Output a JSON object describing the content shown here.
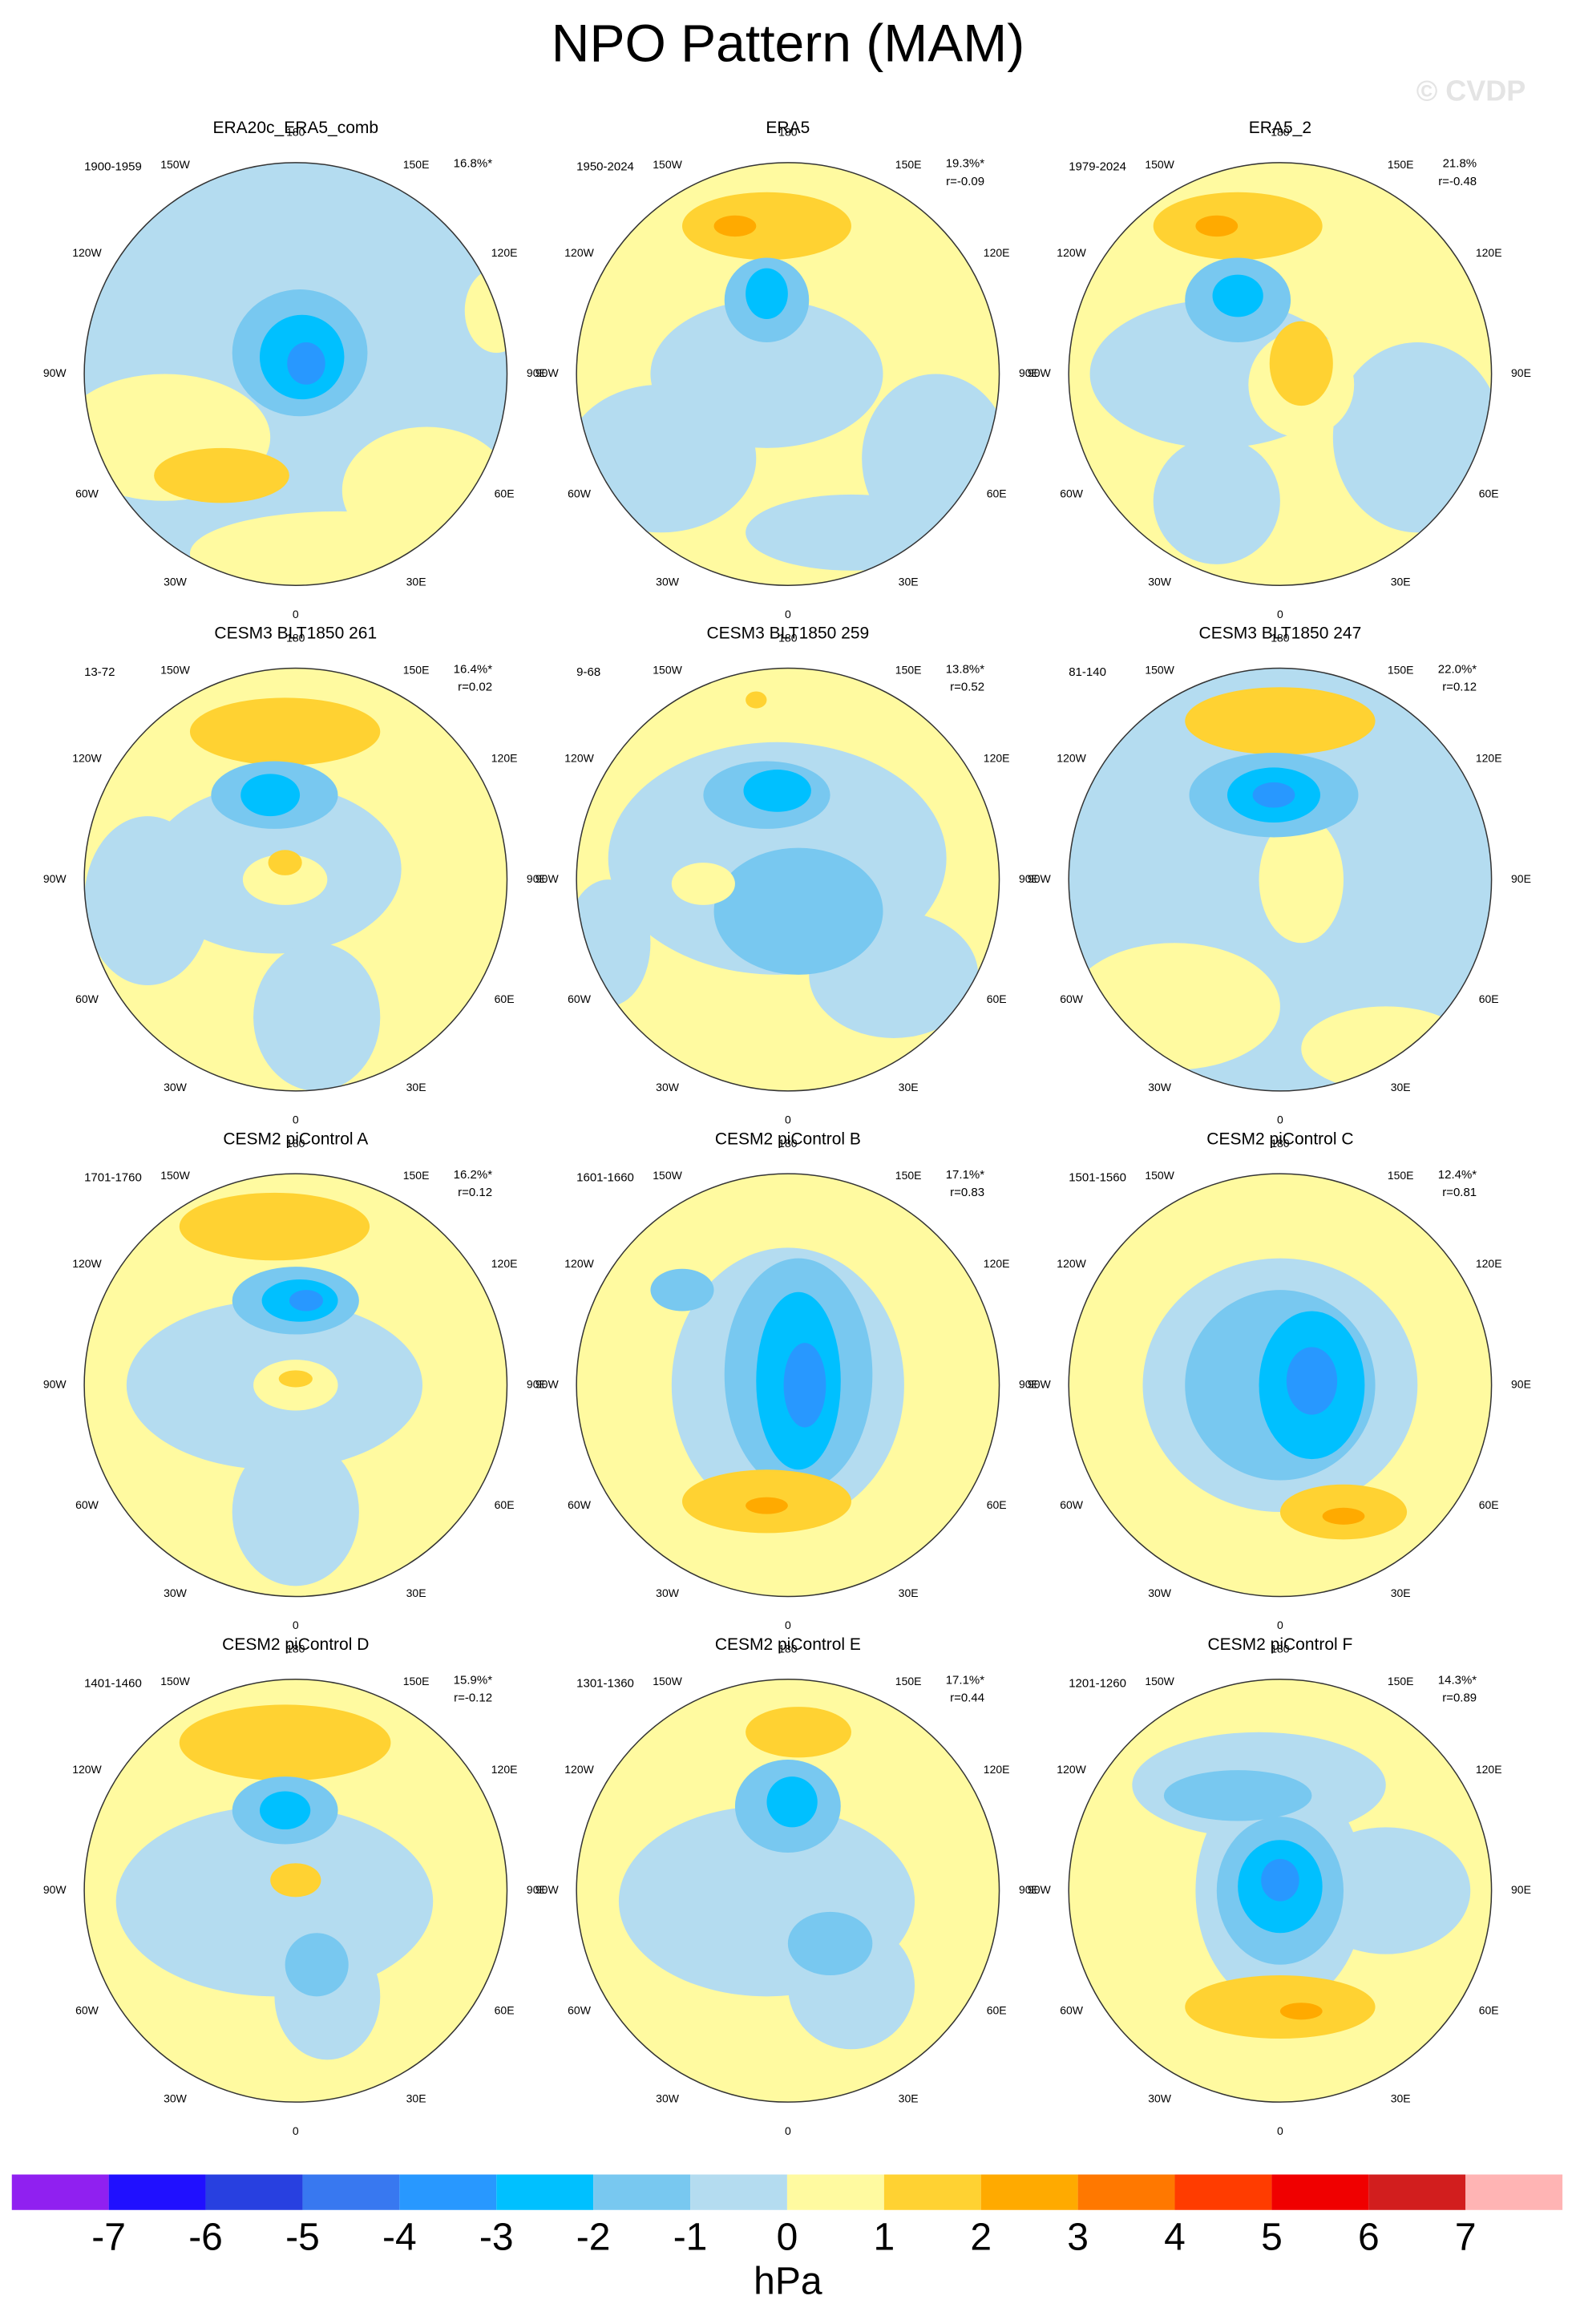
{
  "title": "NPO Pattern (MAM)",
  "watermark": "© CVDP",
  "lon_labels": [
    "180",
    "150E",
    "120E",
    "90E",
    "60E",
    "30E",
    "0",
    "30W",
    "60W",
    "90W",
    "120W",
    "150W"
  ],
  "panels": [
    {
      "title": "ERA20c_ERA5_comb",
      "period": "1900-1959",
      "pct": "16.8%*"
    },
    {
      "title": "ERA5",
      "period": "1950-2024",
      "pct": "19.3%*",
      "r": "r=-0.09"
    },
    {
      "title": "ERA5_2",
      "period": "1979-2024",
      "pct": "21.8%",
      "r": "r=-0.48"
    },
    {
      "title": "CESM3 BLT1850 261",
      "period": "13-72",
      "pct": "16.4%*",
      "r": "r=0.02"
    },
    {
      "title": "CESM3 BLT1850 259",
      "period": "9-68",
      "pct": "13.8%*",
      "r": "r=0.52"
    },
    {
      "title": "CESM3 BLT1850 247",
      "period": "81-140",
      "pct": "22.0%*",
      "r": "r=0.12"
    },
    {
      "title": "CESM2 piControl A",
      "period": "1701-1760",
      "pct": "16.2%*",
      "r": "r=0.12"
    },
    {
      "title": "CESM2 piControl B",
      "period": "1601-1660",
      "pct": "17.1%*",
      "r": "r=0.83"
    },
    {
      "title": "CESM2 piControl C",
      "period": "1501-1560",
      "pct": "12.4%*",
      "r": "r=0.81"
    },
    {
      "title": "CESM2 piControl D",
      "period": "1401-1460",
      "pct": "15.9%*",
      "r": "r=-0.12"
    },
    {
      "title": "CESM2 piControl E",
      "period": "1301-1360",
      "pct": "17.1%*",
      "r": "r=0.44"
    },
    {
      "title": "CESM2 piControl F",
      "period": "1201-1260",
      "pct": "14.3%*",
      "r": "r=0.89"
    }
  ],
  "colorbar": {
    "levels": [
      -7,
      -6,
      -5,
      -4,
      -3,
      -2,
      -1,
      0,
      1,
      2,
      3,
      4,
      5,
      6,
      7
    ],
    "colors": [
      "#9020f0",
      "#2010ff",
      "#2840e0",
      "#3878f0",
      "#2898ff",
      "#00c0ff",
      "#78c8f0",
      "#b4dcf0",
      "#fffaa0",
      "#ffd232",
      "#ffaa00",
      "#ff7800",
      "#ff3c00",
      "#f00000",
      "#d21e1e",
      "#ffb4b4"
    ],
    "unit": "hPa"
  }
}
